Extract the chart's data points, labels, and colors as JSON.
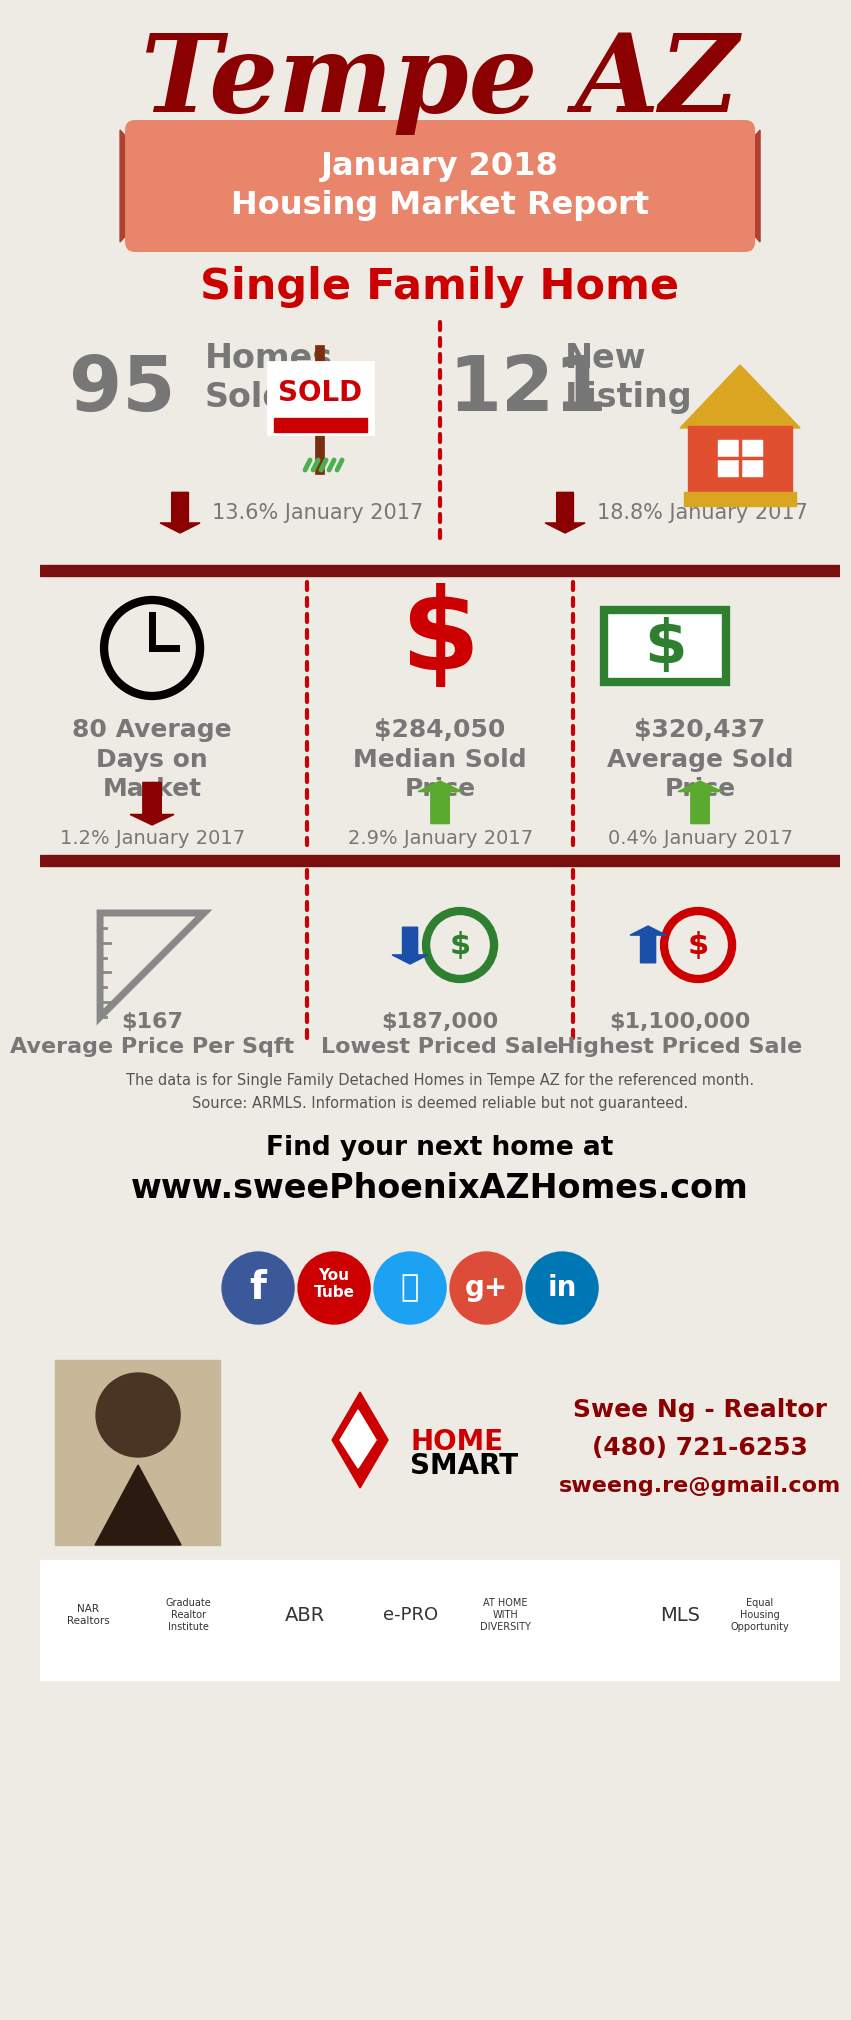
{
  "title": "Tempe AZ",
  "subtitle1": "January 2018",
  "subtitle2": "Housing Market Report",
  "section1": "Single Family Home",
  "homes_sold_num": "95",
  "new_listing_num": "121",
  "homes_sold_change": "13.6% January 2017",
  "new_listing_change": "18.8% January 2017",
  "days_label": "80 Average\nDays on\nMarket",
  "median_label": "$284,050\nMedian Sold\nPrice",
  "avg_label": "$320,437\nAverage Sold\nPrice",
  "days_change": "1.2% January 2017",
  "median_change": "2.9% January 2017",
  "avg_change": "0.4% January 2017",
  "sqft_label": "$167\nAverage Price Per Sqft",
  "lowest_label": "$187,000\nLowest Priced Sale",
  "highest_label": "$1,100,000\nHighest Priced Sale",
  "disclaimer": "The data is for Single Family Detached Homes in Tempe AZ for the referenced month.\nSource: ARMLS. Information is deemed reliable but not guaranteed.",
  "cta_line1": "Find your next home at",
  "cta_line2": "www.sweePhoenixAZHomes.com",
  "agent_name": "Swee Ng - Realtor",
  "agent_phone": "(480) 721-6253",
  "agent_email": "sweeng.re@gmail.com",
  "bg_color": "#eeebe5",
  "title_color": "#8b0000",
  "ribbon_color": "#e8856a",
  "ribbon_dark": "#b04030",
  "section_color": "#cc0000",
  "gray_text": "#777777",
  "dark_red": "#8b0000",
  "divider_color": "#7a1010",
  "green_arrow": "#5aaa30",
  "blue_arrow": "#1a4faa",
  "green_circle": "#2e8030",
  "fb_color": "#3b5998",
  "yt_color": "#cc0000",
  "tw_color": "#1da1f2",
  "gp_color": "#dd4b39",
  "li_color": "#0077b5",
  "agent_text_color": "#8b0000"
}
